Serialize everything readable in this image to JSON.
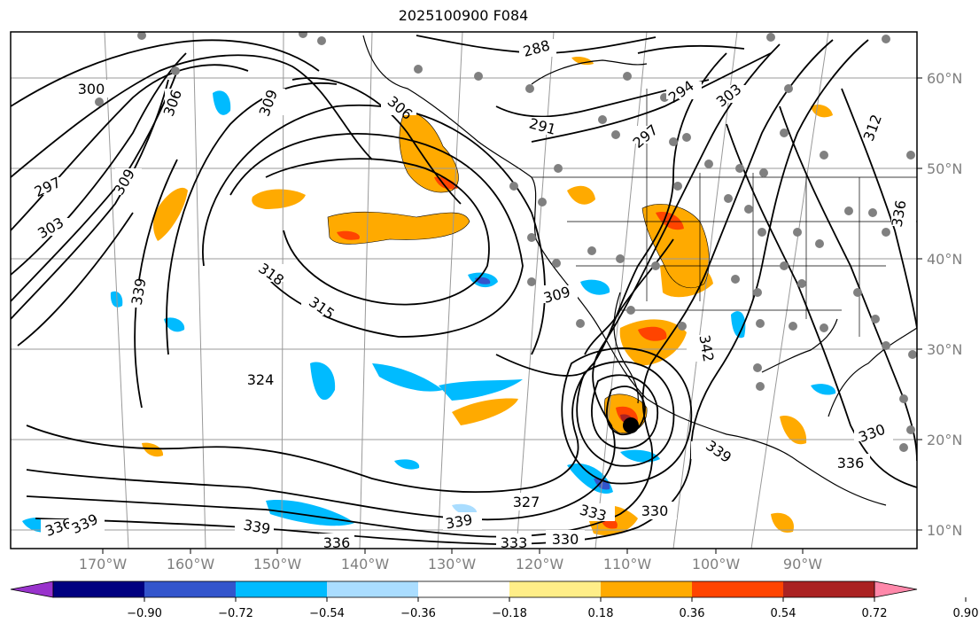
{
  "title": "2025100900 F084",
  "longitude_labels": [
    "170°W",
    "160°W",
    "150°W",
    "140°W",
    "130°W",
    "120°W",
    "110°W",
    "100°W",
    "90°W"
  ],
  "latitude_labels": [
    "60°N",
    "50°N",
    "40°N",
    "30°N",
    "20°N",
    "10°N"
  ],
  "contour_labels": [
    "288",
    "291",
    "294",
    "297",
    "303",
    "306",
    "312",
    "300",
    "297",
    "303",
    "306",
    "309",
    "318",
    "315",
    "309",
    "324",
    "330",
    "333",
    "336",
    "339",
    "339",
    "342",
    "339",
    "336",
    "339",
    "336",
    "333",
    "330",
    "327",
    "330",
    "336",
    "339",
    "309"
  ],
  "colorbar": {
    "ticks": [
      "−0.90",
      "−0.72",
      "−0.54",
      "−0.36",
      "−0.18",
      "0.18",
      "0.36",
      "0.54",
      "0.72",
      "0.90"
    ],
    "colors": [
      "#9933cc",
      "#000080",
      "#3355cc",
      "#00bbff",
      "#aaddff",
      "#ffffff",
      "#ffee88",
      "#ffaa00",
      "#ff4400",
      "#aa2222",
      "#ff88aa"
    ]
  },
  "storm_marker": {
    "lon": -111.5,
    "lat": 21.5
  }
}
